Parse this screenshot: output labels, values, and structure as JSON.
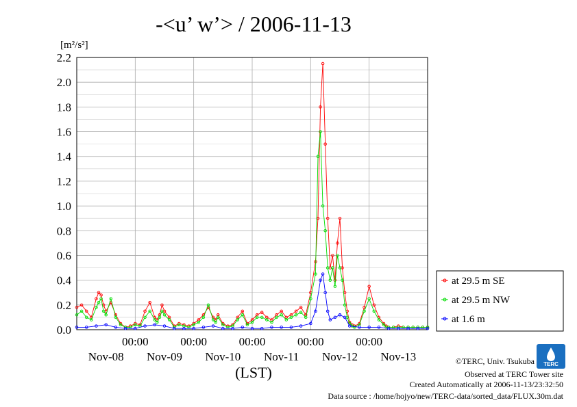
{
  "chart_data": {
    "type": "line",
    "title": "-<u’ w’> / 2006-11-13",
    "ylabel": "[m²/s²]",
    "xlabel": "(LST)",
    "ylim": [
      0,
      2.2
    ],
    "y_ticks": [
      "0.0",
      "0.2",
      "0.4",
      "0.6",
      "0.8",
      "1.0",
      "1.2",
      "1.4",
      "1.6",
      "1.8",
      "2.0",
      "2.2"
    ],
    "xlim_hours": [
      0,
      144
    ],
    "time_labels": [
      "00:00",
      "00:00",
      "00:00",
      "00:00",
      "00:00"
    ],
    "date_labels": [
      "Nov-08",
      "Nov-09",
      "Nov-10",
      "Nov-11",
      "Nov-12",
      "Nov-13"
    ],
    "grid": true,
    "legend_position": "right",
    "series": [
      {
        "name": "at 29.5 m SE",
        "color": "#ff0000",
        "x": [
          0,
          2,
          4,
          6,
          8,
          9,
          10,
          11,
          12,
          14,
          16,
          18,
          20,
          22,
          24,
          26,
          28,
          30,
          32,
          33,
          34,
          35,
          36,
          38,
          40,
          42,
          44,
          46,
          48,
          50,
          52,
          54,
          56,
          57,
          58,
          60,
          62,
          64,
          66,
          68,
          70,
          72,
          74,
          76,
          78,
          80,
          82,
          84,
          86,
          88,
          90,
          92,
          94,
          96,
          98,
          99,
          100,
          101,
          102,
          103,
          104,
          105,
          106,
          107,
          108,
          109,
          110,
          111,
          112,
          113,
          114,
          116,
          118,
          120,
          122,
          124,
          126,
          127,
          128,
          130,
          132,
          134,
          136,
          138,
          140,
          142,
          144
        ],
        "y": [
          0.18,
          0.2,
          0.15,
          0.1,
          0.25,
          0.3,
          0.28,
          0.2,
          0.15,
          0.22,
          0.12,
          0.05,
          0.02,
          0.03,
          0.05,
          0.04,
          0.15,
          0.22,
          0.1,
          0.08,
          0.12,
          0.2,
          0.15,
          0.1,
          0.03,
          0.05,
          0.04,
          0.03,
          0.05,
          0.08,
          0.12,
          0.18,
          0.1,
          0.08,
          0.12,
          0.05,
          0.03,
          0.04,
          0.1,
          0.15,
          0.05,
          0.08,
          0.12,
          0.14,
          0.1,
          0.08,
          0.12,
          0.15,
          0.1,
          0.12,
          0.15,
          0.18,
          0.12,
          0.3,
          0.55,
          0.9,
          1.8,
          2.15,
          1.5,
          0.9,
          0.5,
          0.6,
          0.4,
          0.7,
          0.9,
          0.5,
          0.3,
          0.15,
          0.06,
          0.04,
          0.03,
          0.05,
          0.18,
          0.35,
          0.2,
          0.1,
          0.05,
          0.03,
          0.02,
          0.02,
          0.03,
          0.02,
          0.02,
          0.02,
          0.02,
          0.02,
          0.02
        ]
      },
      {
        "name": "at 29.5 m NW",
        "color": "#00dd00",
        "x": [
          0,
          2,
          4,
          6,
          8,
          9,
          10,
          11,
          12,
          14,
          16,
          18,
          20,
          22,
          24,
          26,
          28,
          30,
          32,
          33,
          34,
          35,
          36,
          38,
          40,
          42,
          44,
          46,
          48,
          50,
          52,
          54,
          56,
          57,
          58,
          60,
          62,
          64,
          66,
          68,
          70,
          72,
          74,
          76,
          78,
          80,
          82,
          84,
          86,
          88,
          90,
          92,
          94,
          96,
          98,
          99,
          100,
          101,
          102,
          103,
          104,
          105,
          106,
          107,
          108,
          109,
          110,
          111,
          112,
          113,
          114,
          116,
          118,
          120,
          122,
          124,
          126,
          127,
          128,
          130,
          132,
          134,
          136,
          138,
          140,
          142,
          144
        ],
        "y": [
          0.12,
          0.15,
          0.1,
          0.08,
          0.18,
          0.22,
          0.25,
          0.15,
          0.12,
          0.25,
          0.1,
          0.04,
          0.02,
          0.02,
          0.04,
          0.03,
          0.1,
          0.15,
          0.08,
          0.06,
          0.1,
          0.15,
          0.12,
          0.08,
          0.02,
          0.04,
          0.03,
          0.02,
          0.04,
          0.06,
          0.1,
          0.2,
          0.08,
          0.06,
          0.1,
          0.04,
          0.02,
          0.03,
          0.08,
          0.12,
          0.04,
          0.06,
          0.1,
          0.1,
          0.08,
          0.06,
          0.1,
          0.12,
          0.08,
          0.1,
          0.12,
          0.14,
          0.1,
          0.25,
          0.45,
          1.4,
          1.6,
          1.0,
          0.8,
          0.5,
          0.4,
          0.5,
          0.35,
          0.6,
          0.5,
          0.4,
          0.2,
          0.1,
          0.05,
          0.03,
          0.02,
          0.04,
          0.15,
          0.25,
          0.15,
          0.08,
          0.04,
          0.02,
          0.02,
          0.02,
          0.02,
          0.02,
          0.02,
          0.02,
          0.02,
          0.02,
          0.02
        ]
      },
      {
        "name": "at 1.6 m",
        "color": "#0000ff",
        "x": [
          0,
          4,
          8,
          12,
          16,
          20,
          24,
          28,
          32,
          36,
          40,
          44,
          48,
          52,
          56,
          60,
          64,
          68,
          72,
          76,
          80,
          84,
          88,
          92,
          96,
          98,
          100,
          101,
          102,
          103,
          104,
          106,
          108,
          110,
          112,
          116,
          120,
          124,
          128,
          132,
          136,
          140,
          144
        ],
        "y": [
          0.02,
          0.02,
          0.03,
          0.04,
          0.02,
          0.01,
          0.01,
          0.03,
          0.04,
          0.03,
          0.01,
          0.01,
          0.01,
          0.02,
          0.03,
          0.01,
          0.01,
          0.02,
          0.01,
          0.01,
          0.02,
          0.02,
          0.02,
          0.03,
          0.05,
          0.15,
          0.4,
          0.45,
          0.3,
          0.15,
          0.08,
          0.1,
          0.12,
          0.1,
          0.03,
          0.02,
          0.02,
          0.02,
          0.01,
          0.01,
          0.01,
          0.01,
          0.01
        ]
      }
    ]
  },
  "footer": {
    "copyright": "©TERC, Univ. Tsukuba",
    "observed": "Observed at TERC Tower site",
    "created": "Created Automatically at 2006-11-13/23:32:50",
    "source": "Data source : /home/hojyo/new/TERC-data/sorted_data/FLUX.30m.dat",
    "logo_text": "TERC"
  }
}
